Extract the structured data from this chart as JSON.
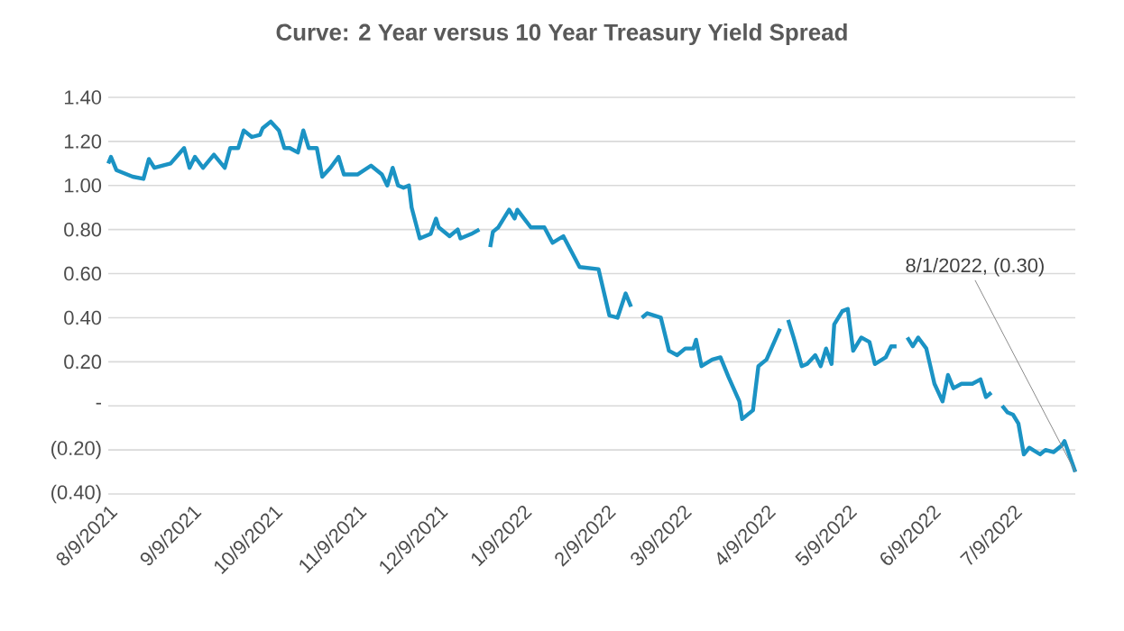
{
  "chart_data": {
    "type": "line",
    "title": "Curve: 2 Year versus 10 Year Treasury Yield Spread",
    "x": [
      "2021-08-09",
      "2021-08-10",
      "2021-08-12",
      "2021-08-18",
      "2021-08-22",
      "2021-08-24",
      "2021-08-26",
      "2021-09-01",
      "2021-09-06",
      "2021-09-08",
      "2021-09-10",
      "2021-09-13",
      "2021-09-17",
      "2021-09-21",
      "2021-09-23",
      "2021-09-26",
      "2021-09-28",
      "2021-10-01",
      "2021-10-04",
      "2021-10-05",
      "2021-10-08",
      "2021-10-11",
      "2021-10-13",
      "2021-10-15",
      "2021-10-18",
      "2021-10-20",
      "2021-10-22",
      "2021-10-25",
      "2021-10-27",
      "2021-10-30",
      "2021-11-02",
      "2021-11-04",
      "2021-11-09",
      "2021-11-14",
      "2021-11-18",
      "2021-11-20",
      "2021-11-22",
      "2021-11-24",
      "2021-11-26",
      "2021-11-28",
      "2021-11-29",
      "2021-12-02",
      "2021-12-06",
      "2021-12-08",
      "2021-12-09",
      "2021-12-13",
      "2021-12-16",
      "2021-12-17",
      "2021-12-21",
      "2021-12-24",
      "2021-12-27",
      "2021-12-28",
      "2021-12-29",
      "2021-12-31",
      "2022-01-04",
      "2022-01-06",
      "2022-01-07",
      "2022-01-12",
      "2022-01-17",
      "2022-01-20",
      "2022-01-24",
      "2022-01-30",
      "2022-02-06",
      "2022-02-10",
      "2022-02-13",
      "2022-02-16",
      "2022-02-18",
      "2022-02-20",
      "2022-02-22",
      "2022-02-24",
      "2022-03-01",
      "2022-03-04",
      "2022-03-07",
      "2022-03-10",
      "2022-03-13",
      "2022-03-14",
      "2022-03-16",
      "2022-03-20",
      "2022-03-23",
      "2022-03-26",
      "2022-03-30",
      "2022-03-31",
      "2022-04-04",
      "2022-04-06",
      "2022-04-09",
      "2022-04-14",
      "2022-04-16",
      "2022-04-17",
      "2022-04-19",
      "2022-04-22",
      "2022-04-24",
      "2022-04-27",
      "2022-04-29",
      "2022-05-01",
      "2022-05-03",
      "2022-05-04",
      "2022-05-07",
      "2022-05-09",
      "2022-05-11",
      "2022-05-14",
      "2022-05-17",
      "2022-05-19",
      "2022-05-23",
      "2022-05-25",
      "2022-05-27",
      "2022-05-29",
      "2022-05-31",
      "2022-06-02",
      "2022-06-04",
      "2022-06-07",
      "2022-06-10",
      "2022-06-13",
      "2022-06-15",
      "2022-06-17",
      "2022-06-20",
      "2022-06-24",
      "2022-06-27",
      "2022-06-29",
      "2022-07-01",
      "2022-07-03",
      "2022-07-05",
      "2022-07-07",
      "2022-07-09",
      "2022-07-11",
      "2022-07-13",
      "2022-07-15",
      "2022-07-19",
      "2022-07-21",
      "2022-07-24",
      "2022-07-27",
      "2022-07-28",
      "2022-08-01"
    ],
    "series": [
      {
        "color": "#1b93c4",
        "values": [
          1.1,
          1.13,
          1.07,
          1.04,
          1.03,
          1.12,
          1.08,
          1.1,
          1.17,
          1.08,
          1.13,
          1.08,
          1.14,
          1.08,
          1.17,
          1.17,
          1.25,
          1.22,
          1.23,
          1.26,
          1.29,
          1.25,
          1.17,
          1.17,
          1.15,
          1.25,
          1.17,
          1.17,
          1.04,
          1.08,
          1.13,
          1.05,
          1.05,
          1.09,
          1.05,
          1.0,
          1.08,
          1.0,
          0.99,
          1.0,
          0.9,
          0.76,
          0.78,
          0.85,
          0.81,
          0.77,
          0.8,
          0.76,
          0.78,
          0.8,
          null,
          0.72,
          0.79,
          0.81,
          0.89,
          0.85,
          0.89,
          0.81,
          0.81,
          0.74,
          0.77,
          0.63,
          0.62,
          0.41,
          0.4,
          0.51,
          0.45,
          null,
          0.4,
          0.42,
          0.4,
          0.25,
          0.23,
          0.26,
          0.26,
          0.3,
          0.18,
          0.21,
          0.22,
          0.13,
          0.02,
          -0.06,
          -0.02,
          0.18,
          0.21,
          0.35,
          null,
          0.39,
          0.31,
          0.18,
          0.19,
          0.23,
          0.18,
          0.26,
          0.19,
          0.37,
          0.43,
          0.44,
          0.25,
          0.31,
          0.29,
          0.19,
          0.22,
          0.27,
          0.27,
          null,
          0.31,
          0.27,
          0.31,
          0.26,
          0.1,
          0.02,
          0.14,
          0.08,
          0.1,
          0.1,
          0.12,
          0.04,
          0.06,
          null,
          0.0,
          -0.03,
          -0.04,
          -0.08,
          -0.22,
          -0.19,
          -0.22,
          -0.2,
          -0.21,
          -0.18,
          -0.16,
          -0.3
        ]
      }
    ],
    "xlim": [
      "2021-08-09",
      "2022-08-01"
    ],
    "xticks": [
      {
        "value": "2021-08-09",
        "label": "8/9/2021"
      },
      {
        "value": "2021-09-09",
        "label": "9/9/2021"
      },
      {
        "value": "2021-10-09",
        "label": "10/9/2021"
      },
      {
        "value": "2021-11-09",
        "label": "11/9/2021"
      },
      {
        "value": "2021-12-09",
        "label": "12/9/2021"
      },
      {
        "value": "2022-01-09",
        "label": "1/9/2022"
      },
      {
        "value": "2022-02-09",
        "label": "2/9/2022"
      },
      {
        "value": "2022-03-09",
        "label": "3/9/2022"
      },
      {
        "value": "2022-04-09",
        "label": "4/9/2022"
      },
      {
        "value": "2022-05-09",
        "label": "5/9/2022"
      },
      {
        "value": "2022-06-09",
        "label": "6/9/2022"
      },
      {
        "value": "2022-07-09",
        "label": "7/9/2022"
      }
    ],
    "ylim": [
      -0.4,
      1.4
    ],
    "yticks": [
      {
        "value": -0.4,
        "label": "(0.40)"
      },
      {
        "value": -0.2,
        "label": "(0.20)"
      },
      {
        "value": 0,
        "label": "-"
      },
      {
        "value": 0.2,
        "label": "0.20"
      },
      {
        "value": 0.4,
        "label": "0.40"
      },
      {
        "value": 0.6,
        "label": "0.60"
      },
      {
        "value": 0.8,
        "label": "0.80"
      },
      {
        "value": 1.0,
        "label": "1.00"
      },
      {
        "value": 1.2,
        "label": "1.20"
      },
      {
        "value": 1.4,
        "label": "1.40"
      }
    ],
    "grid": "y",
    "legend": false,
    "marker": "none",
    "line_style": "solid",
    "annotations": [
      {
        "text": "8/1/2022,  (0.30)",
        "x": "2022-08-01",
        "y": -0.3
      }
    ]
  }
}
